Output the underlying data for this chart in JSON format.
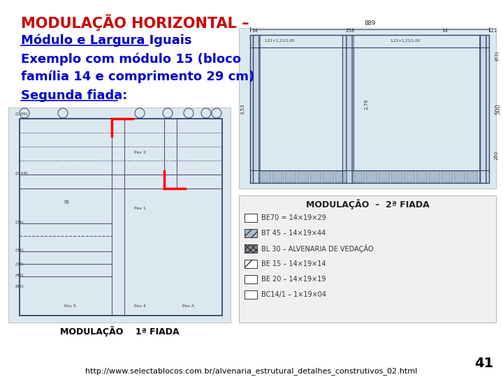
{
  "background_color": "#ffffff",
  "title_line1": "MODULAÇÃO HORIZONTAL –",
  "title_line1_color": "#cc0000",
  "title_line1_fontsize": 15,
  "subtitle_line1": "Módulo e Largura Iguais",
  "subtitle_line1_color": "#0000cc",
  "subtitle_line1_fontsize": 13,
  "body_line1": "Exemplo com módulo 15 (bloco",
  "body_line2": "família 14 e comprimento 29 cm)",
  "body_color": "#0000cc",
  "body_fontsize": 13,
  "section_label": "Segunda fiada:",
  "section_label_color": "#0000cc",
  "section_label_fontsize": 13,
  "page_number": "41",
  "page_number_color": "#000000",
  "page_number_fontsize": 14,
  "footer_url": "http://www.selectablocos.com.br/alvenaria_estrutural_detalhes_construtivos_02.html",
  "footer_color": "#000000",
  "footer_fontsize": 8,
  "left_image_label_bottom": "MODULAÇÃO    1ª FIADA",
  "right_image_label_bottom": "MODULAÇÃO  –  2ª FIADA",
  "image_label_color": "#000000",
  "image_label_fontsize": 9,
  "blueprint_bg": "#dce8f0",
  "blueprint_line": "#334466",
  "legend_bg": "#f0f0f0"
}
